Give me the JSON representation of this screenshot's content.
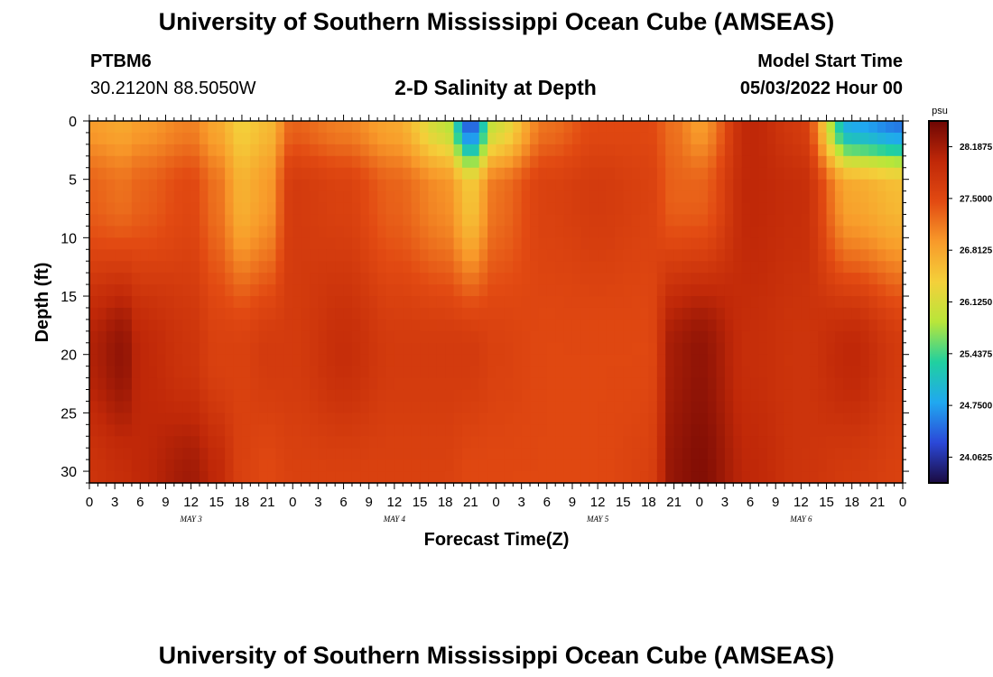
{
  "header": {
    "title": "University of Southern Mississippi Ocean Cube (AMSEAS)",
    "station_id": "PTBM6",
    "station_coords": "30.2120N  88.5050W",
    "model_start_label": "Model Start Time",
    "model_start_value": "05/03/2022 Hour 00",
    "footer_title": "University of Southern Mississippi Ocean Cube (AMSEAS)"
  },
  "chart_data": {
    "type": "heatmap",
    "title": "2-D Salinity at Depth",
    "xlabel": "Forecast Time(Z)",
    "ylabel": "Depth (ft)",
    "x_tick_labels": [
      "0",
      "3",
      "6",
      "9",
      "12",
      "15",
      "18",
      "21",
      "0",
      "3",
      "6",
      "9",
      "12",
      "15",
      "18",
      "21",
      "0",
      "3",
      "6",
      "9",
      "12",
      "15",
      "18",
      "21",
      "0",
      "3",
      "6",
      "9",
      "12",
      "15",
      "18",
      "21",
      "0"
    ],
    "x_range_hours": [
      0,
      96
    ],
    "day_labels": [
      {
        "label": "MAY 3",
        "hour": 12
      },
      {
        "label": "MAY 4",
        "hour": 36
      },
      {
        "label": "MAY 5",
        "hour": 60
      },
      {
        "label": "MAY 6",
        "hour": 84
      }
    ],
    "y_ticks": [
      0,
      5,
      10,
      15,
      20,
      25,
      30
    ],
    "y_range": [
      0,
      31
    ],
    "y_inverted": true,
    "colorbar": {
      "unit": "psu",
      "ticks": [
        "28.1875",
        "27.5000",
        "26.8125",
        "26.1250",
        "25.4375",
        "24.7500",
        "24.0625"
      ],
      "range": [
        23.72,
        28.53
      ],
      "stops": [
        "#1a0a40",
        "#2b48d8",
        "#20a8f0",
        "#20d0a0",
        "#b8e63a",
        "#f4d03a",
        "#f89a2a",
        "#e24a12",
        "#c02808",
        "#6e0604"
      ]
    },
    "salinity_samples": {
      "description_hours": [
        0,
        4,
        6,
        12,
        15,
        18,
        21,
        24,
        30,
        36,
        42,
        45,
        48,
        54,
        60,
        66,
        69,
        72,
        78,
        84,
        90,
        96
      ],
      "surface_0ft": [
        26.9,
        26.8,
        26.9,
        27.1,
        26.8,
        26.4,
        26.6,
        27.3,
        27.1,
        26.8,
        26.0,
        24.3,
        26.1,
        27.2,
        27.5,
        27.5,
        27.2,
        26.9,
        28.0,
        27.7,
        24.8,
        24.5
      ],
      "depth_6ft": [
        27.3,
        27.2,
        27.3,
        27.5,
        27.2,
        26.7,
        26.9,
        27.7,
        27.6,
        27.3,
        27.0,
        26.5,
        27.2,
        27.6,
        27.7,
        27.6,
        27.3,
        27.3,
        28.0,
        27.9,
        26.8,
        26.6
      ],
      "depth_20ft": [
        28.1,
        28.3,
        28.0,
        27.8,
        27.6,
        27.6,
        27.7,
        27.7,
        27.9,
        27.7,
        27.7,
        27.7,
        27.6,
        27.5,
        27.5,
        27.5,
        28.2,
        28.3,
        27.9,
        27.8,
        28.0,
        27.7
      ],
      "depth_30ft": [
        27.8,
        27.9,
        28.0,
        28.2,
        28.0,
        27.6,
        27.5,
        27.6,
        27.6,
        27.6,
        27.6,
        27.5,
        27.5,
        27.5,
        27.5,
        27.6,
        28.3,
        28.4,
        28.0,
        27.8,
        27.7,
        27.6
      ]
    }
  }
}
